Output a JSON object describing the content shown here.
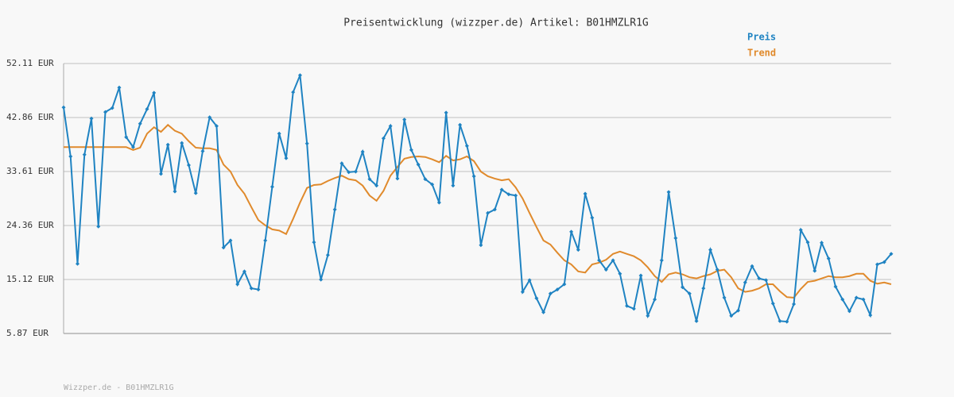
{
  "chart_data": {
    "type": "line",
    "title": "Preisentwicklung (wizzper.de) Artikel: B01HMZLR1G",
    "footer": "Wizzper.de - B01HMZLR1G",
    "legend": "top-right",
    "grid": true,
    "ylim": [
      5.87,
      52.11
    ],
    "yticks": [
      {
        "value": 5.87,
        "label": "5.87 EUR"
      },
      {
        "value": 15.12,
        "label": "15.12 EUR"
      },
      {
        "value": 24.36,
        "label": "24.36 EUR"
      },
      {
        "value": 33.61,
        "label": "33.61 EUR"
      },
      {
        "value": 42.86,
        "label": "42.86 EUR"
      },
      {
        "value": 52.11,
        "label": "52.11 EUR"
      }
    ],
    "series": [
      {
        "name": "Preis",
        "color": "#1f83c2",
        "markers": true,
        "values": [
          44.6,
          36.2,
          17.8,
          36.5,
          42.7,
          24.2,
          43.8,
          44.5,
          48.0,
          39.5,
          37.8,
          41.8,
          44.3,
          47.1,
          33.2,
          38.2,
          30.2,
          38.5,
          34.7,
          29.9,
          37.1,
          42.9,
          41.4,
          20.6,
          21.8,
          14.3,
          16.5,
          13.6,
          13.4,
          21.8,
          31.0,
          40.1,
          35.9,
          47.2,
          50.1,
          38.4,
          21.5,
          15.1,
          19.3,
          27.1,
          35.0,
          33.5,
          33.6,
          37.0,
          32.3,
          31.2,
          39.3,
          41.4,
          32.4,
          42.5,
          37.3,
          34.8,
          32.3,
          31.4,
          28.3,
          43.7,
          31.2,
          41.6,
          38.0,
          32.8,
          21.0,
          26.5,
          27.1,
          30.5,
          29.7,
          29.5,
          13.0,
          15.0,
          11.9,
          9.5,
          12.7,
          13.4,
          14.3,
          23.3,
          20.2,
          29.8,
          25.7,
          18.4,
          16.8,
          18.4,
          16.1,
          10.6,
          10.1,
          15.8,
          8.9,
          11.7,
          18.4,
          30.1,
          22.2,
          13.8,
          12.7,
          8.0,
          13.6,
          20.2,
          16.8,
          12.0,
          8.9,
          9.8,
          14.6,
          17.4,
          15.3,
          15.0,
          11.0,
          8.0,
          7.9,
          10.9,
          23.6,
          21.5,
          16.6,
          21.4,
          18.7,
          13.9,
          11.7,
          9.7,
          12.0,
          11.7,
          9.0,
          17.7,
          18.1,
          19.5
        ]
      },
      {
        "name": "Trend",
        "color": "#e08a2c",
        "markers": false,
        "values": [
          37.8,
          37.8,
          37.8,
          37.8,
          37.8,
          37.8,
          37.8,
          37.8,
          37.8,
          37.8,
          37.3,
          37.7,
          40.1,
          41.2,
          40.4,
          41.6,
          40.6,
          40.1,
          38.8,
          37.7,
          37.6,
          37.6,
          37.3,
          34.8,
          33.6,
          31.3,
          29.8,
          27.5,
          25.3,
          24.4,
          23.7,
          23.5,
          22.9,
          25.5,
          28.3,
          30.8,
          31.3,
          31.4,
          32.0,
          32.5,
          32.9,
          32.3,
          32.1,
          31.2,
          29.5,
          28.6,
          30.3,
          32.9,
          34.4,
          35.8,
          36.1,
          36.2,
          36.1,
          35.7,
          35.2,
          36.3,
          35.5,
          35.7,
          36.2,
          35.4,
          33.6,
          32.8,
          32.4,
          32.1,
          32.3,
          30.9,
          29.0,
          26.5,
          24.1,
          21.8,
          21.1,
          19.7,
          18.4,
          17.7,
          16.5,
          16.3,
          17.7,
          18.0,
          18.5,
          19.5,
          19.9,
          19.5,
          19.1,
          18.4,
          17.2,
          15.7,
          14.7,
          16.0,
          16.3,
          16.0,
          15.5,
          15.3,
          15.7,
          16.0,
          16.6,
          16.8,
          15.5,
          13.6,
          13.0,
          13.2,
          13.6,
          14.3,
          14.3,
          13.1,
          12.1,
          12.0,
          13.5,
          14.7,
          14.9,
          15.3,
          15.7,
          15.5,
          15.5,
          15.7,
          16.1,
          16.1,
          14.9,
          14.4,
          14.6,
          14.3
        ]
      }
    ]
  }
}
